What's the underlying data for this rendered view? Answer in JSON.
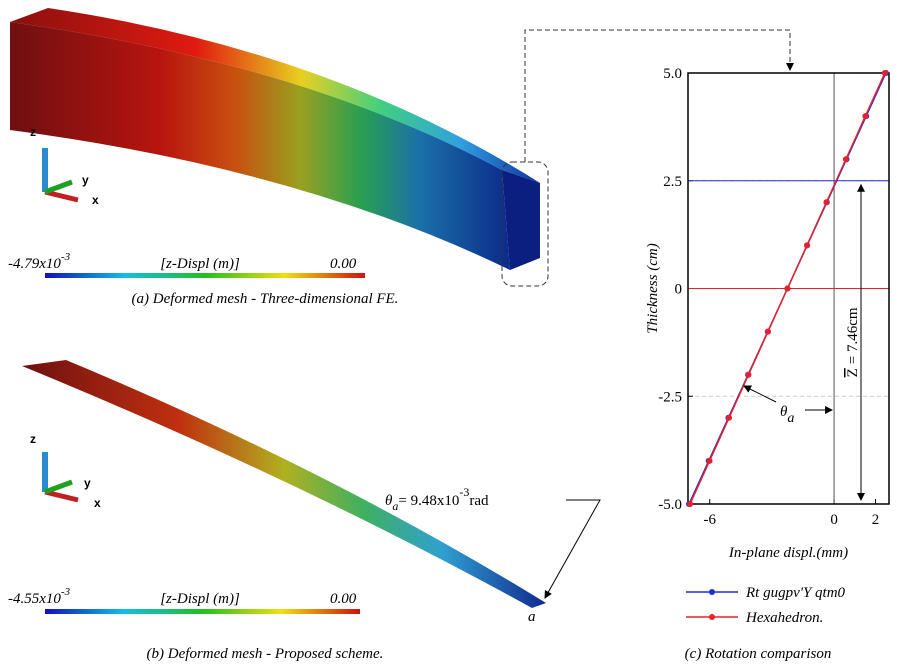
{
  "panel_a": {
    "colorbar_min": "-4.79x10",
    "colorbar_min_exp": "-3",
    "colorbar_label": "[z-Displ (m)]",
    "colorbar_max": "0.00",
    "caption": "(a) Deformed mesh - Three-dimensional FE.",
    "axes": [
      "z",
      "y",
      "x"
    ]
  },
  "panel_b": {
    "colorbar_min": "-4.55x10",
    "colorbar_min_exp": "-3",
    "colorbar_label": "[z-Displ (m)]",
    "colorbar_max": "0.00",
    "caption": "(b) Deformed mesh - Proposed scheme.",
    "axes": [
      "z",
      "y",
      "x"
    ],
    "angle_symbol": "θ",
    "angle_sub": "a",
    "angle_text": "= 9.48x10",
    "angle_exp": "-3",
    "angle_unit": "rad",
    "point": "a"
  },
  "chart_data": {
    "type": "line",
    "caption": "(c) Rotation comparison",
    "xlabel": "In-plane displ.(mm)",
    "ylabel": "Thickness (cm)",
    "xlim": [
      -7.05,
      2.65
    ],
    "xticks": [
      -6,
      0,
      2
    ],
    "ylim": [
      -5,
      5
    ],
    "yticks": [
      {
        "value": -5,
        "label": "-5.0"
      },
      -2.5,
      0,
      2.5,
      {
        "value": 5,
        "label": "5.0"
      }
    ],
    "grid": true,
    "series": [
      {
        "name": "Rt gugpv'Y qtm0",
        "color": "#1f2fd0",
        "x": [
          -7.0,
          -6.05,
          -5.1,
          -4.15,
          -3.2,
          -2.25,
          -1.3,
          -0.35,
          0.6,
          1.55,
          2.5
        ],
        "values": [
          -5,
          -4,
          -3,
          -2,
          -1,
          0,
          1,
          2,
          3,
          4,
          5
        ]
      },
      {
        "name": "Hexahedron.",
        "color": "#e8202a",
        "x": [
          -6.95,
          -6.01,
          -5.07,
          -4.13,
          -3.19,
          -2.25,
          -1.31,
          -0.37,
          0.57,
          1.51,
          2.45
        ],
        "values": [
          -5,
          -4,
          -3,
          -2,
          -1,
          0,
          1,
          2,
          3,
          4,
          5
        ]
      }
    ],
    "hlines": [
      {
        "value": 2.5,
        "color": "#1f2fd0"
      },
      {
        "value": 0,
        "color": "#e8202a"
      }
    ],
    "vline": 0,
    "annotations": {
      "theta_symbol": "θ",
      "theta_sub": "a",
      "zbar_symbol": "Z",
      "zbar_text": "= 7.46cm"
    }
  }
}
